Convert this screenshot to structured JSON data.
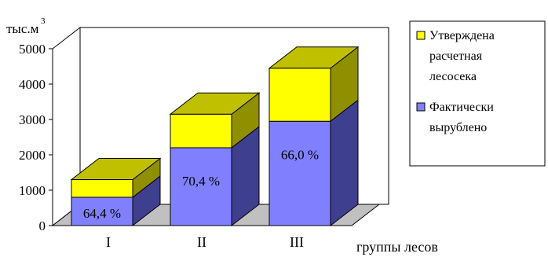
{
  "chart_data": {
    "type": "bar",
    "stacked": true,
    "three_d": true,
    "ylabel": "тыс.м",
    "ylabel_superscript": "3",
    "xlabel": "группы лесов",
    "ylim": [
      0,
      5000
    ],
    "yticks": [
      "0",
      "1000",
      "2000",
      "3000",
      "4000",
      "5000"
    ],
    "categories": [
      "I",
      "II",
      "III"
    ],
    "series": [
      {
        "name": "Фактически вырублено",
        "values": [
          800,
          2200,
          2950
        ],
        "color": "#8080ff"
      },
      {
        "name": "Утверждена расчетная лесосека",
        "values": [
          500,
          950,
          1500
        ],
        "color": "#ffff00"
      }
    ],
    "bar_labels": [
      "64,4 %",
      "70,4 %",
      "66,0 %"
    ],
    "legend_position": "right"
  },
  "legend": {
    "items": [
      {
        "lines": [
          "Утверждена",
          "расчетная",
          "лесосека"
        ],
        "color": "#ffff00"
      },
      {
        "lines": [
          "Фактически",
          "вырублено"
        ],
        "color": "#8080ff"
      }
    ]
  },
  "colors": {
    "blue_front": "#8080ff",
    "blue_side": "#3f3f8f",
    "yellow_front": "#ffff00",
    "yellow_side": "#8f8f00",
    "yellow_top": "#c0c000",
    "floor": "#c0c0c0"
  }
}
